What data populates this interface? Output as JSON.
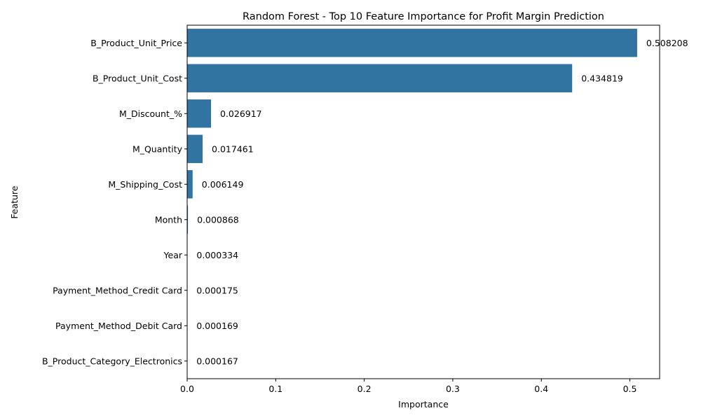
{
  "chart_data": {
    "type": "bar",
    "orientation": "horizontal",
    "title": "Random Forest - Top 10 Feature Importance for Profit Margin Prediction",
    "xlabel": "Importance",
    "ylabel": "Feature",
    "categories": [
      "B_Product_Unit_Price",
      "B_Product_Unit_Cost",
      "M_Discount_%",
      "M_Quantity",
      "M_Shipping_Cost",
      "Month",
      "Year",
      "Payment_Method_Credit Card",
      "Payment_Method_Debit Card",
      "B_Product_Category_Electronics"
    ],
    "values": [
      0.508208,
      0.434819,
      0.026917,
      0.017461,
      0.006149,
      0.000868,
      0.000334,
      0.000175,
      0.000169,
      0.000167
    ],
    "value_labels": [
      "0.508208",
      "0.434819",
      "0.026917",
      "0.017461",
      "0.006149",
      "0.000868",
      "0.000334",
      "0.000175",
      "0.000169",
      "0.000167"
    ],
    "xticks": [
      0.0,
      0.1,
      0.2,
      0.3,
      0.4,
      0.5
    ],
    "xtick_labels": [
      "0.0",
      "0.1",
      "0.2",
      "0.3",
      "0.4",
      "0.5"
    ],
    "xlim": [
      0,
      0.5336
    ],
    "grid": false,
    "bar_color": "#3274a1"
  }
}
